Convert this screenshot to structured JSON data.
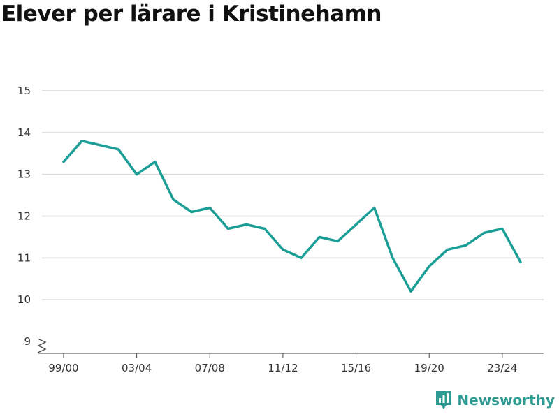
{
  "chart_data": {
    "type": "line",
    "title": "Elever per lärare i Kristinehamn",
    "xlabel": "",
    "ylabel": "",
    "x": [
      "99/00",
      "00/01",
      "01/02",
      "02/03",
      "03/04",
      "04/05",
      "05/06",
      "06/07",
      "07/08",
      "08/09",
      "09/10",
      "10/11",
      "11/12",
      "12/13",
      "13/14",
      "14/15",
      "15/16",
      "16/17",
      "17/18",
      "18/19",
      "19/20",
      "20/21",
      "21/22",
      "22/23",
      "23/24",
      "24/25"
    ],
    "x_tick_labels": [
      "99/00",
      "03/04",
      "07/08",
      "11/12",
      "15/16",
      "19/20",
      "23/24"
    ],
    "series": [
      {
        "values": [
          13.3,
          13.8,
          13.7,
          13.6,
          13.0,
          13.3,
          12.4,
          12.1,
          12.2,
          11.7,
          11.8,
          11.7,
          11.2,
          11.0,
          11.5,
          11.4,
          11.8,
          12.2,
          11.0,
          10.2,
          10.8,
          11.2,
          11.3,
          11.6,
          11.7,
          10.9
        ]
      }
    ],
    "y_ticks": [
      9,
      10,
      11,
      12,
      13,
      14,
      15
    ],
    "ylim": [
      9,
      15
    ],
    "y_axis_break": true,
    "grid": true,
    "line_color": "#1a9e96"
  },
  "brand": {
    "name": "Newsworthy",
    "color": "#2e9b93"
  }
}
